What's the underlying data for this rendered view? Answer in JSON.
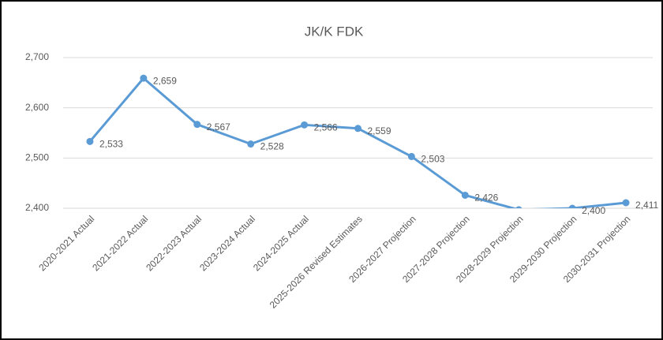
{
  "chart_data": {
    "type": "line",
    "title": "JK/K FDK",
    "categories": [
      "2020-2021 Actual",
      "2021-2022 Actual",
      "2022-2023 Actual",
      "2023-2024 Actual",
      "2024-2025 Actual",
      "2025-2026 Revised Estimates",
      "2026-2027 Projection",
      "2027-2028 Projection",
      "2028-2029 Projection",
      "2029-2030 Projection",
      "2030-2031 Projection"
    ],
    "series": [
      {
        "name": "JK/K FDK",
        "color": "#5b9bd5",
        "values": [
          2533,
          2659,
          2567,
          2528,
          2566,
          2559,
          2503,
          2426,
          2397,
          2400,
          2411
        ],
        "value_labels": [
          "2,533",
          "2,659",
          "2,567",
          "2,528",
          "2,566",
          "2,559",
          "2,503",
          "2,426",
          null,
          "2,400",
          "2,411"
        ]
      }
    ],
    "ylim": [
      2400,
      2700
    ],
    "yticks": [
      {
        "value": 2400,
        "label": "2,400"
      },
      {
        "value": 2500,
        "label": "2,500"
      },
      {
        "value": 2600,
        "label": "2,600"
      },
      {
        "value": 2700,
        "label": "2,700"
      }
    ],
    "grid": true
  }
}
